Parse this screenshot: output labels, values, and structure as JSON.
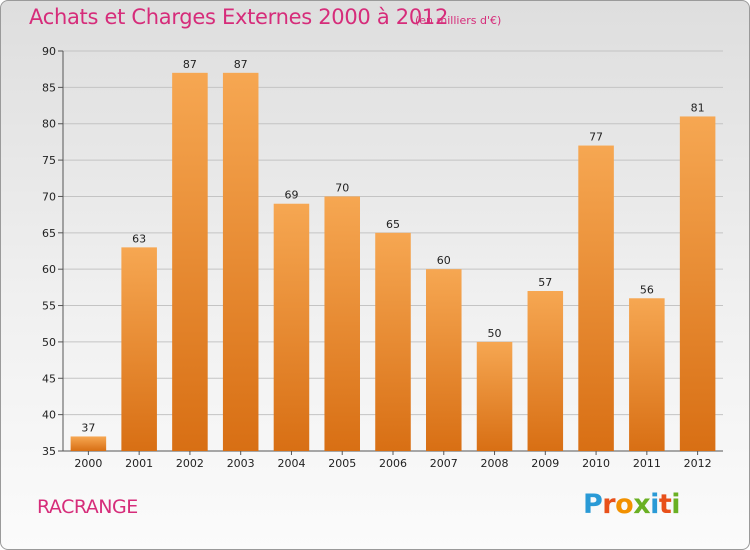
{
  "title": "Achats et Charges Externes 2000 à 2012",
  "unit_label": "(en milliers d'€)",
  "commune": "RACRANGE",
  "logo": {
    "text": "Proxiti",
    "letters": [
      {
        "ch": "P",
        "color": "#2a9ad6"
      },
      {
        "ch": "r",
        "color": "#e8501a"
      },
      {
        "ch": "o",
        "color": "#f29100"
      },
      {
        "ch": "x",
        "color": "#6ab023"
      },
      {
        "ch": "i",
        "color": "#2a9ad6"
      },
      {
        "ch": "t",
        "color": "#e8501a"
      },
      {
        "ch": "i",
        "color": "#6ab023"
      }
    ]
  },
  "colors": {
    "bar_light": "#f6a752",
    "bar_dark": "#d86f14",
    "accent": "#d62c7a"
  },
  "chart_data": {
    "type": "bar",
    "title": "Achats et Charges Externes 2000 à 2012",
    "xlabel": "",
    "ylabel": "",
    "categories": [
      "2000",
      "2001",
      "2002",
      "2003",
      "2004",
      "2005",
      "2006",
      "2007",
      "2008",
      "2009",
      "2010",
      "2011",
      "2012"
    ],
    "values": [
      37,
      63,
      87,
      87,
      69,
      70,
      65,
      60,
      50,
      57,
      77,
      56,
      81
    ],
    "ylim": [
      35,
      90
    ],
    "yticks": [
      35,
      40,
      45,
      50,
      55,
      60,
      65,
      70,
      75,
      80,
      85,
      90
    ],
    "grid": true,
    "legend": "none"
  }
}
